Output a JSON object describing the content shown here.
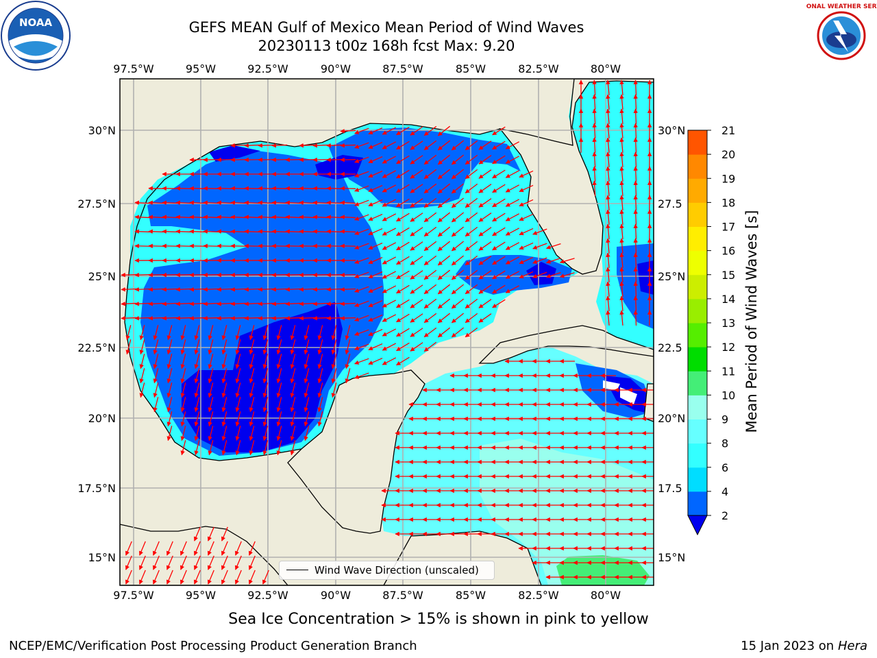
{
  "header": {
    "title_line1": "GEFS MEAN Gulf of Mexico Mean Period of Wind Waves",
    "title_line2": "20230113 t00z 168h fcst   Max: 9.20"
  },
  "logos": {
    "left": "NOAA",
    "right": "NATIONAL WEATHER SERVICE"
  },
  "map": {
    "lon_labels": [
      "97.5°W",
      "95°W",
      "92.5°W",
      "90°W",
      "87.5°W",
      "85°W",
      "82.5°W",
      "80°W"
    ],
    "lat_labels_left": [
      "30°N",
      "27.5°N",
      "25°N",
      "22.5°N",
      "20°N",
      "17.5°N",
      "15°N"
    ],
    "lat_labels_right": [
      "30°N",
      "27.5",
      "25°N",
      "22.5",
      "20°N",
      "17.5",
      "15°N"
    ],
    "legend_label": "Wind Wave Direction (unscaled)",
    "colors": {
      "land": "#eeecdb",
      "grid": "#b0b0b0",
      "arrow": "#ff0000",
      "coast": "#000000"
    }
  },
  "colorbar": {
    "label": "Mean Period of Wind Waves [s]",
    "ticks": [
      "2",
      "4",
      "6",
      "8",
      "9",
      "10",
      "11",
      "12",
      "13",
      "14",
      "15",
      "16",
      "17",
      "18",
      "19",
      "20",
      "21"
    ],
    "colors": [
      "#0066ff",
      "#00ddff",
      "#33ffff",
      "#66ffff",
      "#99ffee",
      "#44ee77",
      "#00dd00",
      "#55ee00",
      "#99ee00",
      "#ccee00",
      "#eeff00",
      "#ffee00",
      "#ffcc00",
      "#ffaa00",
      "#ff8800",
      "#ff5500",
      "#ff2200",
      "#ff0000"
    ],
    "under_color": "#0000ee"
  },
  "footer": {
    "ice_note": "Sea Ice Concentration > 15% is shown in pink to yellow",
    "left": "NCEP/EMC/Verification Post Processing Product Generation Branch",
    "right_prefix": "15 Jan 2023 on ",
    "right_host": "Hera"
  }
}
